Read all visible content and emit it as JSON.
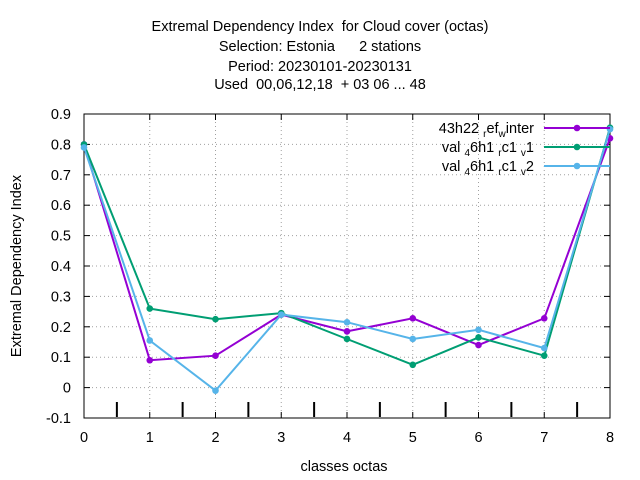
{
  "chart_data": {
    "type": "line",
    "title_lines": [
      "Extremal Dependency Index  for Cloud cover (octas)",
      "Selection: Estonia      2 stations",
      "Period: 20230101-20230131",
      "Used  00,06,12,18  + 03 06 ... 48"
    ],
    "xlabel": "classes octas",
    "ylabel": "Extremal Dependency Index",
    "xlim": [
      0,
      8
    ],
    "ylim": [
      -0.1,
      0.9
    ],
    "x_ticks": [
      "0",
      "1",
      "2",
      "3",
      "4",
      "5",
      "6",
      "7",
      "8"
    ],
    "y_ticks": [
      "-0.1",
      "0",
      "0.1",
      "0.2",
      "0.3",
      "0.4",
      "0.5",
      "0.6",
      "0.7",
      "0.8",
      "0.9"
    ],
    "grid": true,
    "legend_position": "top-right",
    "x": [
      0,
      1,
      2,
      3,
      4,
      5,
      6,
      7,
      8
    ],
    "series": [
      {
        "name": "43h22_ref_winter",
        "legend_parts": [
          [
            "43h22 ",
            "",
            ""
          ],
          [
            "r",
            "sub",
            ""
          ],
          [
            "ef",
            "",
            ""
          ],
          [
            "w",
            "sub",
            ""
          ],
          [
            "inter",
            "",
            ""
          ]
        ],
        "color": "#9400d3",
        "values": [
          0.8,
          0.09,
          0.105,
          0.24,
          0.185,
          0.228,
          0.14,
          0.228,
          0.82
        ]
      },
      {
        "name": "val_46h1_rc1_v1",
        "legend_parts": [
          [
            "val ",
            "",
            ""
          ],
          [
            "4",
            "sub",
            ""
          ],
          [
            "6h1 ",
            "",
            ""
          ],
          [
            "r",
            "sub",
            ""
          ],
          [
            "c1 ",
            "",
            ""
          ],
          [
            "v",
            "sub",
            ""
          ],
          [
            "1",
            "",
            ""
          ]
        ],
        "color": "#009e73",
        "values": [
          0.8,
          0.26,
          0.225,
          0.245,
          0.16,
          0.075,
          0.165,
          0.105,
          0.855
        ]
      },
      {
        "name": "val_46h1_rc1_v2",
        "legend_parts": [
          [
            "val ",
            "",
            ""
          ],
          [
            "4",
            "sub",
            ""
          ],
          [
            "6h1 ",
            "",
            ""
          ],
          [
            "r",
            "sub",
            ""
          ],
          [
            "c1 ",
            "",
            ""
          ],
          [
            "v",
            "sub",
            ""
          ],
          [
            "2",
            "",
            ""
          ]
        ],
        "color": "#56b4e9",
        "values": [
          0.79,
          0.155,
          -0.01,
          0.24,
          0.215,
          0.16,
          0.19,
          0.13,
          0.85
        ]
      }
    ],
    "bottom_tick_marks_x": [
      0.5,
      1.5,
      2.5,
      3.5,
      4.5,
      5.5,
      6.5,
      7.5
    ]
  }
}
